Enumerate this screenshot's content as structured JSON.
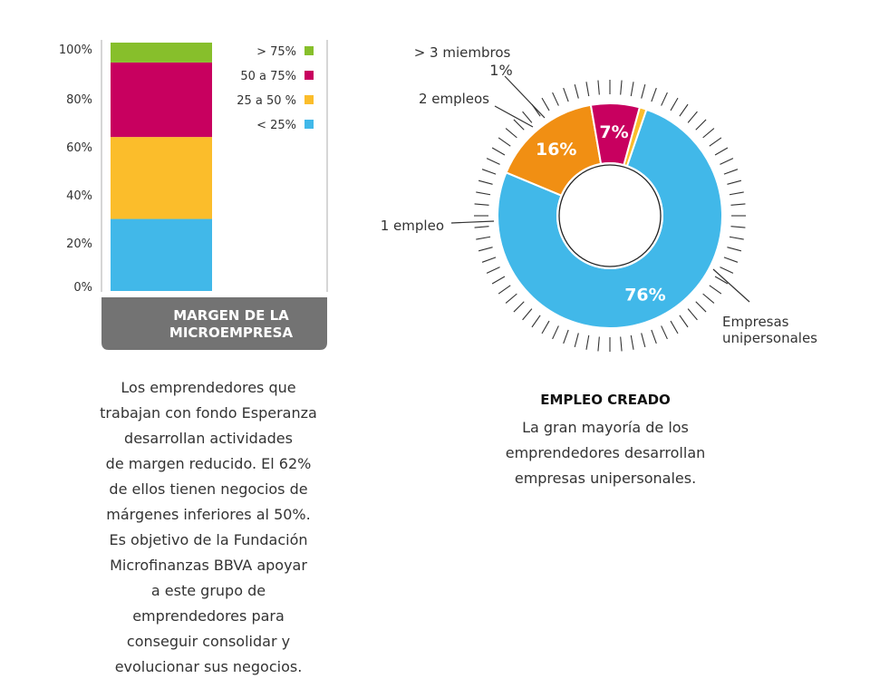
{
  "chart_data": [
    {
      "type": "bar",
      "stacked": true,
      "title": "MARGEN DE LA\nMICROEMPRESA",
      "yticks": [
        "100%",
        "80%",
        "60%",
        "40%",
        "20%",
        "0%"
      ],
      "ylim": [
        0,
        100
      ],
      "series": [
        {
          "name": "< 25%",
          "value": 29,
          "color": "#41b8e9"
        },
        {
          "name": "25 a 50 %",
          "value": 33,
          "color": "#fbbd2b"
        },
        {
          "name": "50 a 75%",
          "value": 30,
          "color": "#c8005f"
        },
        {
          "name": "> 75%",
          "value": 8,
          "color": "#87bf2b"
        }
      ],
      "legend_order": [
        "> 75%",
        "50 a 75%",
        "25 a 50 %",
        "< 25%"
      ],
      "legend_placement": "top-right"
    },
    {
      "type": "pie",
      "donut": true,
      "title": "EMPLEO CREADO",
      "slices": [
        {
          "name": "Empresas unipersonales",
          "value": 76,
          "label": "76%",
          "color": "#41b8e9"
        },
        {
          "name": "1 empleo",
          "value": 16,
          "label": "16%",
          "color": "#f18f13"
        },
        {
          "name": "2 empleos",
          "value": 7,
          "label": "7%",
          "color": "#c8005f"
        },
        {
          "name": "> 3 miembros",
          "value": 1,
          "label": "1%",
          "color": "#fbbd2b"
        }
      ],
      "callouts": {
        "unipersonales": "Empresas\nunipersonales",
        "one": "1 empleo",
        "two": "2 empleos",
        "three": "> 3 miembros",
        "three_value": "1%"
      }
    }
  ],
  "captions": {
    "margin": "Los emprendedores que\ntrabajan con fondo Esperanza\ndesarrollan actividades\nde margen reducido. El 62%\nde ellos tienen negocios de\nmárgenes inferiores al 50%.\nEs objetivo de la Fundación\nMicrofinanzas BBVA apoyar\na este grupo de\nemprendedores para\nconseguir consolidar y\nevolucionar sus negocios.",
    "employ_title": "EMPLEO CREADO",
    "employ": "La gran mayoría de los\nemprendedores desarrollan\nempresas unipersonales."
  }
}
